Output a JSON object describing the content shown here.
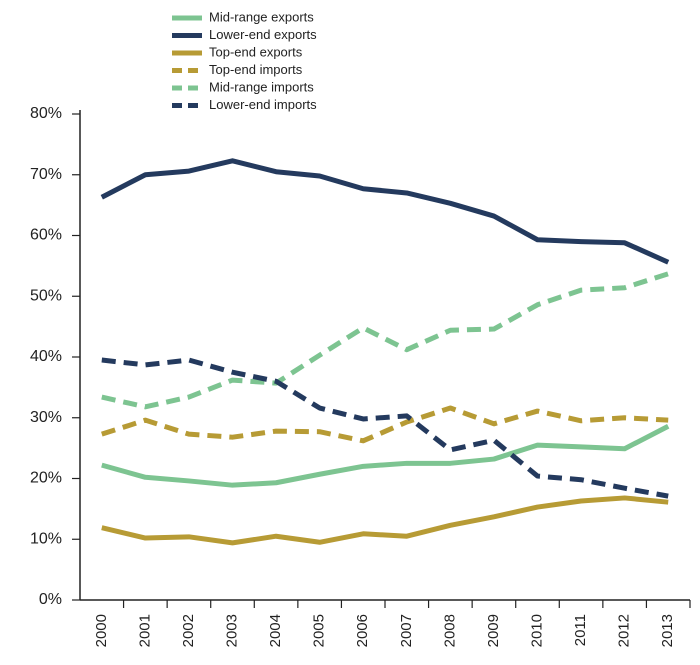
{
  "chart_data": {
    "type": "line",
    "categories": [
      "2000",
      "2001",
      "2002",
      "2003",
      "2004",
      "2005",
      "2006",
      "2007",
      "2008",
      "2009",
      "2010",
      "2011",
      "2012",
      "2013"
    ],
    "series": [
      {
        "name": "Mid-range exports",
        "color": "#7dc491",
        "dashed": false,
        "values": [
          22.2,
          20.2,
          19.6,
          18.9,
          19.3,
          20.7,
          22.0,
          22.5,
          22.5,
          23.2,
          25.5,
          25.2,
          24.9,
          28.6
        ]
      },
      {
        "name": "Lower-end exports",
        "color": "#243a5e",
        "dashed": false,
        "values": [
          66.3,
          70.0,
          70.6,
          72.3,
          70.5,
          69.8,
          67.7,
          67.0,
          65.3,
          63.2,
          59.3,
          59.0,
          58.8,
          55.6
        ]
      },
      {
        "name": "Top-end exports",
        "color": "#b79b35",
        "dashed": false,
        "values": [
          11.9,
          10.2,
          10.4,
          9.4,
          10.5,
          9.5,
          10.9,
          10.5,
          12.3,
          13.7,
          15.3,
          16.3,
          16.8,
          16.1
        ]
      },
      {
        "name": "Top-end imports",
        "color": "#b79b35",
        "dashed": true,
        "values": [
          27.3,
          29.6,
          27.3,
          26.8,
          27.8,
          27.7,
          26.2,
          29.3,
          31.6,
          29.0,
          31.1,
          29.5,
          30.0,
          29.6
        ]
      },
      {
        "name": "Mid-range imports",
        "color": "#7dc491",
        "dashed": true,
        "values": [
          33.4,
          31.8,
          33.4,
          36.2,
          35.7,
          40.3,
          44.8,
          41.2,
          44.4,
          44.6,
          48.6,
          51.0,
          51.4,
          53.7
        ]
      },
      {
        "name": "Lower-end imports",
        "color": "#243a5e",
        "dashed": true,
        "values": [
          39.5,
          38.7,
          39.5,
          37.5,
          36.0,
          31.6,
          29.8,
          30.3,
          24.7,
          26.3,
          20.4,
          19.8,
          18.4,
          17.1
        ]
      }
    ],
    "ylim": [
      0,
      80
    ],
    "yticks": [
      {
        "value": 0,
        "label": "0%"
      },
      {
        "value": 10,
        "label": "10%"
      },
      {
        "value": 20,
        "label": "20%"
      },
      {
        "value": 30,
        "label": "30%"
      },
      {
        "value": 40,
        "label": "40%"
      },
      {
        "value": 50,
        "label": "50%"
      },
      {
        "value": 60,
        "label": "60%"
      },
      {
        "value": 70,
        "label": "70%"
      },
      {
        "value": 80,
        "label": "80%"
      }
    ],
    "grid": false,
    "legend": "top-left"
  }
}
